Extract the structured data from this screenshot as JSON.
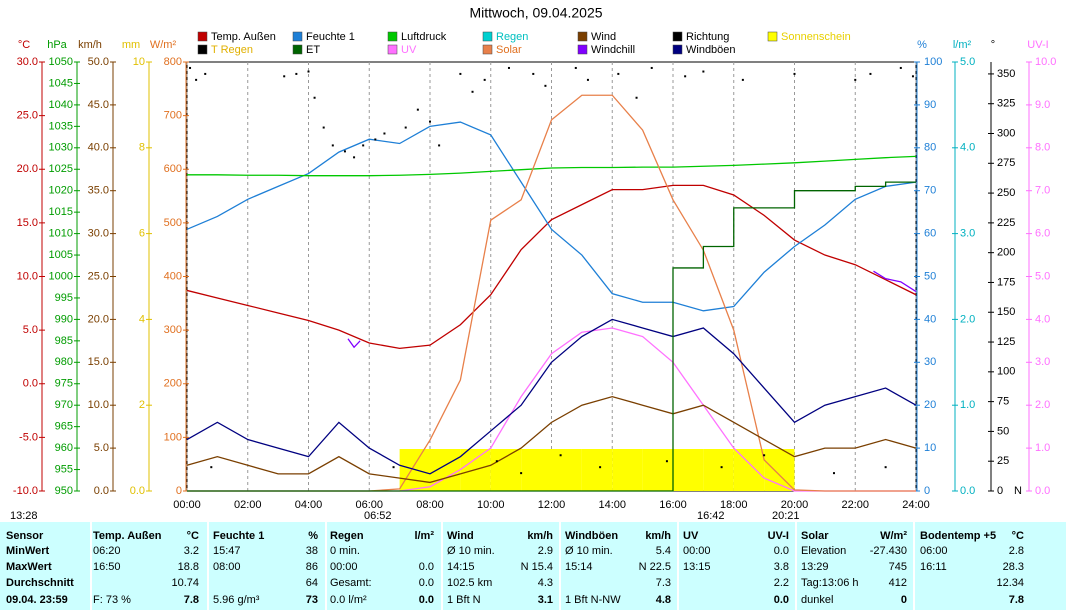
{
  "chart_data": {
    "type": "line",
    "title": "Mittwoch, 09.04.2025",
    "xlim": [
      0,
      24
    ],
    "xticks": [
      {
        "value": 0,
        "label": "00:00"
      },
      {
        "value": 2,
        "label": "02:00"
      },
      {
        "value": 4,
        "label": "04:00"
      },
      {
        "value": 6,
        "label": "06:00"
      },
      {
        "value": 8,
        "label": "08:00"
      },
      {
        "value": 10,
        "label": "10:00"
      },
      {
        "value": 12,
        "label": "12:00"
      },
      {
        "value": 14,
        "label": "14:00"
      },
      {
        "value": 16,
        "label": "16:00"
      },
      {
        "value": 18,
        "label": "18:00"
      },
      {
        "value": 20,
        "label": "20:00"
      },
      {
        "value": 22,
        "label": "22:00"
      },
      {
        "value": 24,
        "label": "24:00"
      }
    ],
    "grid": true,
    "annotations": [
      "13:28",
      "06:52",
      "16:42",
      "20:21"
    ],
    "axes": [
      {
        "label": "°C",
        "color": "#c00000",
        "side": "left",
        "lim": [
          -10,
          30
        ],
        "ticks": [
          {
            "value": -10,
            "label": "-10.0"
          },
          {
            "value": -5,
            "label": "-5.0"
          },
          {
            "value": 0,
            "label": "0.0"
          },
          {
            "value": 5,
            "label": "5.0"
          },
          {
            "value": 10,
            "label": "10.0"
          },
          {
            "value": 15,
            "label": "15.0"
          },
          {
            "value": 20,
            "label": "20.0"
          },
          {
            "value": 25,
            "label": "25.0"
          },
          {
            "value": 30,
            "label": "30.0"
          }
        ]
      },
      {
        "label": "hPa",
        "color": "#009c00",
        "side": "left",
        "lim": [
          950,
          1050
        ],
        "ticks": [
          950,
          955,
          960,
          965,
          970,
          975,
          980,
          985,
          990,
          995,
          1000,
          1005,
          1010,
          1015,
          1020,
          1025,
          1030,
          1035,
          1040,
          1045,
          1050
        ]
      },
      {
        "label": "km/h",
        "color": "#7a3f00",
        "side": "left",
        "lim": [
          0,
          50
        ],
        "ticks": [
          {
            "value": 0,
            "label": "0.0"
          },
          {
            "value": 5,
            "label": "5.0"
          },
          {
            "value": 10,
            "label": "10.0"
          },
          {
            "value": 15,
            "label": "15.0"
          },
          {
            "value": 20,
            "label": "20.0"
          },
          {
            "value": 25,
            "label": "25.0"
          },
          {
            "value": 30,
            "label": "30.0"
          },
          {
            "value": 35,
            "label": "35.0"
          },
          {
            "value": 40,
            "label": "40.0"
          },
          {
            "value": 45,
            "label": "45.0"
          },
          {
            "value": 50,
            "label": "50.0"
          }
        ]
      },
      {
        "label": "mm",
        "color": "#e0c000",
        "side": "left",
        "lim": [
          0,
          10
        ],
        "ticks": [
          {
            "value": 0,
            "label": "0.0"
          },
          2,
          4,
          6,
          8,
          10
        ]
      },
      {
        "label": "W/m²",
        "color": "#e07020",
        "side": "left",
        "lim": [
          0,
          800
        ],
        "ticks": [
          0,
          100,
          200,
          300,
          400,
          500,
          600,
          700,
          800
        ]
      },
      {
        "label": "%",
        "color": "#1e7fd6",
        "side": "right",
        "lim": [
          0,
          100
        ],
        "ticks": [
          0,
          10,
          20,
          30,
          40,
          50,
          60,
          70,
          80,
          90,
          100
        ]
      },
      {
        "label": "l/m²",
        "color": "#00b0c0",
        "side": "right",
        "lim": [
          0,
          5
        ],
        "ticks": [
          {
            "value": 0,
            "label": "0.0"
          },
          {
            "value": 1,
            "label": "1.0"
          },
          {
            "value": 2,
            "label": "2.0"
          },
          {
            "value": 3,
            "label": "3.0"
          },
          {
            "value": 4,
            "label": "4.0"
          },
          {
            "value": 5,
            "label": "5.0"
          }
        ]
      },
      {
        "label": "°",
        "color": "#000000",
        "side": "right",
        "lim": [
          0,
          360
        ],
        "zero_label": "N",
        "ticks": [
          0,
          25,
          50,
          75,
          100,
          125,
          150,
          175,
          200,
          225,
          250,
          275,
          300,
          325,
          350
        ]
      },
      {
        "label": "UV-I",
        "color": "#ff70ff",
        "side": "right",
        "lim": [
          0,
          10
        ],
        "ticks": [
          {
            "value": 0,
            "label": "0.0"
          },
          {
            "value": 1,
            "label": "1.0"
          },
          {
            "value": 2,
            "label": "2.0"
          },
          {
            "value": 3,
            "label": "3.0"
          },
          {
            "value": 4,
            "label": "4.0"
          },
          {
            "value": 5,
            "label": "5.0"
          },
          {
            "value": 6,
            "label": "6.0"
          },
          {
            "value": 7,
            "label": "7.0"
          },
          {
            "value": 8,
            "label": "8.0"
          },
          {
            "value": 9,
            "label": "9.0"
          },
          {
            "value": 10,
            "label": "10.0"
          }
        ]
      }
    ],
    "x": [
      0,
      1,
      2,
      3,
      4,
      5,
      6,
      7,
      8,
      9,
      10,
      11,
      12,
      13,
      14,
      15,
      16,
      17,
      18,
      19,
      20,
      21,
      22,
      23,
      24
    ],
    "series": [
      {
        "name": "Temp. Außen",
        "color": "#c00000",
        "axis": "°C",
        "style": "line",
        "values": [
          8.7,
          8.0,
          7.3,
          6.6,
          5.9,
          5.0,
          3.8,
          3.3,
          3.6,
          5.5,
          8.3,
          12.5,
          15.3,
          16.7,
          18.1,
          18.1,
          18.5,
          18.5,
          17.6,
          15.7,
          13.4,
          12.0,
          11.1,
          9.7,
          8.3
        ]
      },
      {
        "name": "T Regen",
        "color": "#000000",
        "legend_text_color": "#e0b000"
      },
      {
        "name": "Feuchte 1",
        "color": "#1e7fd6",
        "axis": "%",
        "style": "line",
        "values": [
          61,
          64,
          68,
          71,
          74,
          79,
          82,
          81,
          85,
          86,
          83,
          72,
          61,
          55,
          46,
          44,
          44,
          42,
          43,
          51,
          57,
          62,
          68,
          71,
          72
        ]
      },
      {
        "name": "ET",
        "color": "#006400",
        "axis": "l/m²",
        "style": "step",
        "values": [
          0,
          0,
          0,
          0,
          0,
          0,
          0,
          0,
          0,
          0,
          0,
          0,
          0,
          0,
          0,
          0,
          2.6,
          2.85,
          3.3,
          3.3,
          3.5,
          3.5,
          3.55,
          3.6,
          3.6
        ]
      },
      {
        "name": "Luftdruck",
        "color": "#00c800",
        "axis": "hPa",
        "style": "line",
        "values": [
          1023.7,
          1023.7,
          1023.6,
          1023.6,
          1023.5,
          1023.5,
          1023.5,
          1023.6,
          1023.8,
          1024.1,
          1024.5,
          1024.9,
          1025.3,
          1025.4,
          1025.4,
          1025.5,
          1025.5,
          1025.7,
          1025.9,
          1026.2,
          1026.5,
          1026.9,
          1027.3,
          1027.7,
          1028.0
        ]
      },
      {
        "name": "UV",
        "color": "#ff70ff",
        "axis": "UV-I",
        "style": "line",
        "legend_text_color": "#ff70ff",
        "values": [
          0,
          0,
          0,
          0,
          0,
          0,
          0,
          0,
          0.1,
          0.5,
          1.0,
          2.2,
          3.2,
          3.7,
          3.8,
          3.6,
          3.0,
          2.0,
          1.0,
          0.3,
          0,
          0,
          0,
          0,
          0
        ]
      },
      {
        "name": "Regen",
        "color": "#00d0d0",
        "legend_text_color": "#00c0c0"
      },
      {
        "name": "Solar",
        "color": "#e8804a",
        "axis": "W/m²",
        "style": "line",
        "legend_text_color": "#e07020",
        "values": [
          0,
          0,
          0,
          0,
          0,
          0,
          0,
          4,
          95,
          207,
          505,
          543,
          692,
          738,
          738,
          673,
          543,
          449,
          300,
          58,
          2,
          0,
          0,
          0,
          0
        ]
      },
      {
        "name": "Wind",
        "color": "#7a3f00",
        "axis": "km/h",
        "style": "line",
        "values": [
          3,
          4,
          3,
          2,
          2,
          4,
          2,
          1.5,
          1,
          2,
          3,
          5,
          8,
          10,
          11,
          10,
          9,
          10,
          8,
          6,
          4,
          5,
          5,
          6,
          5
        ]
      },
      {
        "name": "Windchill",
        "color": "#8000ff",
        "axis": "°C",
        "style": "line",
        "x": [
          5.3,
          5.5,
          5.7,
          6.0,
          22.6,
          23,
          23.5,
          24
        ],
        "values": [
          4.2,
          3.4,
          4.0,
          null,
          10.5,
          9.8,
          9.5,
          8.6
        ]
      },
      {
        "name": "Richtung",
        "color": "#000000",
        "axis": "°",
        "style": "dots",
        "x": [
          0.1,
          0.3,
          0.6,
          0.8,
          3.2,
          3.6,
          4.0,
          4.2,
          4.5,
          4.8,
          5.2,
          5.5,
          5.8,
          6.2,
          6.5,
          6.8,
          7.2,
          7.6,
          8.0,
          8.3,
          9.0,
          9.4,
          9.8,
          10.2,
          10.6,
          11.0,
          11.4,
          11.8,
          12.3,
          12.8,
          13.2,
          13.6,
          14.2,
          14.8,
          15.3,
          15.8,
          16.4,
          17.0,
          17.6,
          18.3,
          19.0,
          20.0,
          21.3,
          22.0,
          22.5,
          23.0,
          23.5,
          23.9
        ],
        "values": [
          355,
          345,
          350,
          20,
          348,
          350,
          352,
          330,
          305,
          290,
          285,
          280,
          290,
          295,
          300,
          20,
          305,
          320,
          310,
          290,
          350,
          335,
          345,
          25,
          355,
          15,
          350,
          340,
          30,
          355,
          345,
          20,
          350,
          330,
          355,
          25,
          348,
          352,
          20,
          345,
          30,
          350,
          15,
          345,
          350,
          20,
          355,
          348
        ]
      },
      {
        "name": "Windböen",
        "color": "#000080",
        "axis": "km/h",
        "style": "line",
        "values": [
          6,
          8,
          6,
          5,
          4,
          8,
          5,
          3,
          2,
          4,
          7,
          10,
          15,
          18,
          20,
          19,
          18,
          19,
          16,
          12,
          8,
          10,
          11,
          12,
          10
        ]
      },
      {
        "name": "Sonnenschein",
        "color": "#ffff00",
        "style": "band",
        "legend_text_color": "#e8d000",
        "values": [
          0,
          0,
          0,
          0,
          0,
          0,
          0,
          1,
          1,
          1,
          1,
          1,
          1,
          1,
          1,
          1,
          1,
          1,
          1,
          1,
          0,
          0,
          0,
          0,
          0
        ]
      }
    ]
  },
  "table": {
    "headers": [
      {
        "name": "Sensor"
      },
      {
        "name": "Temp. Außen",
        "unit": "°C"
      },
      {
        "name": "Feuchte 1",
        "unit": "%"
      },
      {
        "name": "Regen",
        "unit": "l/m²"
      },
      {
        "name": "Wind",
        "unit": "km/h"
      },
      {
        "name": "Windböen",
        "unit": "km/h"
      },
      {
        "name": "UV",
        "unit": "UV-I"
      },
      {
        "name": "Solar",
        "unit": "W/m²"
      },
      {
        "name": "Bodentemp +5",
        "unit": "°C"
      }
    ],
    "rows": [
      {
        "label": "MinWert",
        "cells": [
          [
            "06:20",
            "3.2"
          ],
          [
            "15:47",
            "38"
          ],
          [
            "0 min.",
            null
          ],
          [
            "Ø 10 min.",
            "2.9"
          ],
          [
            "Ø 10 min.",
            "5.4"
          ],
          [
            "00:00",
            "0.0"
          ],
          [
            "Elevation",
            "-27.430"
          ],
          [
            "06:00",
            "2.8"
          ]
        ]
      },
      {
        "label": "MaxWert",
        "cells": [
          [
            "16:50",
            "18.8"
          ],
          [
            "08:00",
            "86"
          ],
          [
            "00:00",
            "0.0"
          ],
          [
            "14:15",
            "N 15.4"
          ],
          [
            "15:14",
            "N 22.5"
          ],
          [
            "13:15",
            "3.8"
          ],
          [
            "13:29",
            "745"
          ],
          [
            "16:11",
            "28.3"
          ]
        ]
      },
      {
        "label": "Durchschnitt",
        "cells": [
          [
            null,
            "10.74"
          ],
          [
            null,
            "64"
          ],
          [
            "Gesamt:",
            "0.0"
          ],
          [
            "102.5 km",
            "4.3"
          ],
          [
            null,
            "7.3"
          ],
          [
            null,
            "2.2"
          ],
          [
            "Tag:13:06 h",
            "412"
          ],
          [
            null,
            "12.34"
          ]
        ]
      },
      {
        "label": "09.04. 23:59",
        "cells": [
          [
            "F: 73 %",
            "7.8"
          ],
          [
            "5.96 g/m³",
            "73"
          ],
          [
            "0.0 l/m²",
            "0.0"
          ],
          [
            "1 Bft N",
            "3.1"
          ],
          [
            "1 Bft N-NW",
            "4.8"
          ],
          [
            null,
            "0.0"
          ],
          [
            "dunkel",
            "0"
          ],
          [
            null,
            "7.8"
          ]
        ]
      }
    ]
  }
}
